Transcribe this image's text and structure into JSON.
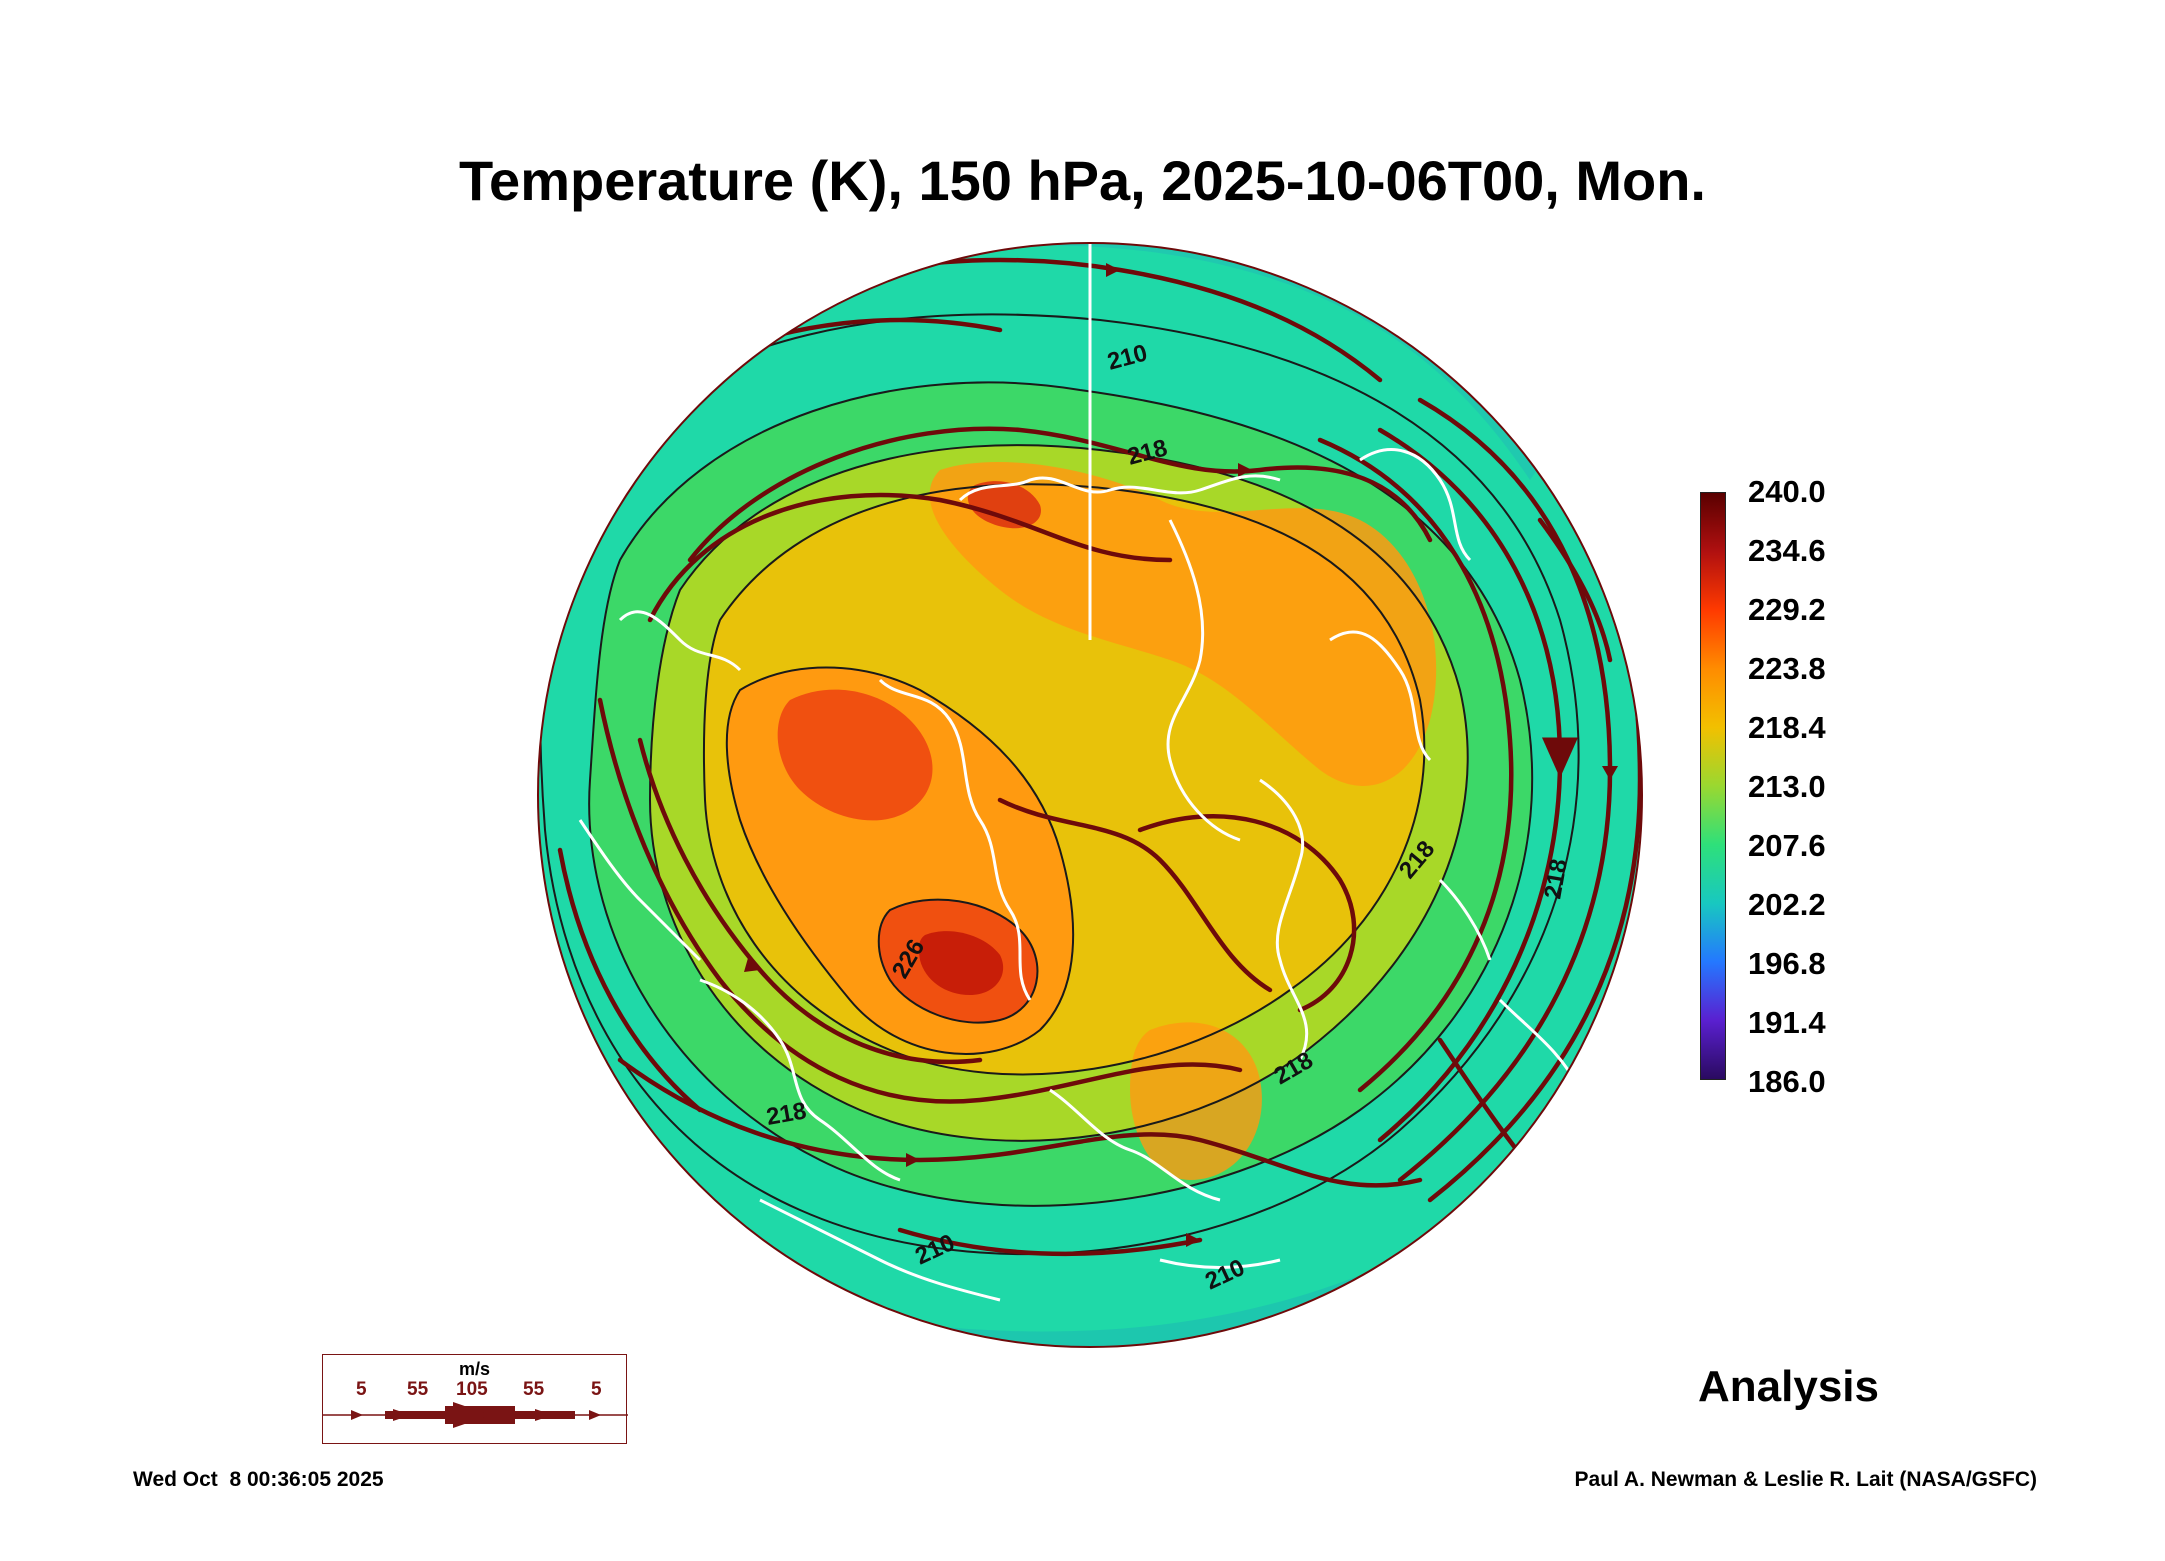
{
  "title": "Temperature (K), 150 hPa, 2025-10-06T00, Mon.",
  "colorbar": {
    "labels": [
      "240.0",
      "234.6",
      "229.2",
      "223.8",
      "218.4",
      "213.0",
      "207.6",
      "202.2",
      "196.8",
      "191.4",
      "186.0"
    ],
    "colors": [
      "#5a0000",
      "#b01010",
      "#ff3a00",
      "#ff8c00",
      "#f2c000",
      "#9ad830",
      "#2ee07a",
      "#18c8c0",
      "#2478ff",
      "#5a20d0",
      "#2a0a60"
    ]
  },
  "map": {
    "contour_labels": [
      "210",
      "218",
      "218",
      "226",
      "218",
      "218",
      "210",
      "210",
      "218"
    ],
    "field_colors": {
      "outer": "#1fd9a8",
      "teal": "#1ec8b4",
      "green": "#38d860",
      "yellowgreen": "#a8d828",
      "yellow": "#e8c20a",
      "orange": "#ff9a10",
      "red": "#f05010",
      "darkred": "#c81e08",
      "streamline": "#6e0a0a",
      "coast": "#ffffff"
    }
  },
  "wind_legend": {
    "unit": "m/s",
    "speeds": [
      "5",
      "55",
      "105",
      "55",
      "5"
    ]
  },
  "label": "Analysis",
  "footer": {
    "timestamp": "Wed Oct  8 00:36:05 2025",
    "credit": "Paul A. Newman & Leslie R. Lait (NASA/GSFC)"
  }
}
